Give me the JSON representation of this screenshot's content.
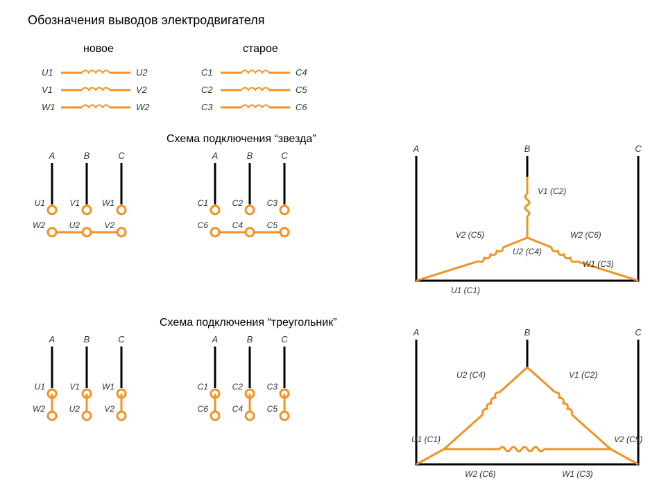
{
  "colors": {
    "orange": "#f59122",
    "black": "#000000",
    "white": "#ffffff",
    "text": "#333333"
  },
  "stroke": {
    "thick": 3,
    "thin": 2
  },
  "title": "Обозначения выводов электродвигателя",
  "headers": {
    "new": "новое",
    "old": "старое",
    "star": "Схема подключения “звезда”",
    "delta": "Схема подключения “треугольник”"
  },
  "windings": {
    "new": [
      {
        "l": "U1",
        "r": "U2"
      },
      {
        "l": "V1",
        "r": "V2"
      },
      {
        "l": "W1",
        "r": "W2"
      }
    ],
    "old": [
      {
        "l": "C1",
        "r": "C4"
      },
      {
        "l": "C2",
        "r": "C5"
      },
      {
        "l": "C3",
        "r": "C6"
      }
    ]
  },
  "terminals": {
    "phaseLabels": [
      "A",
      "B",
      "C"
    ],
    "new": {
      "top": [
        "U1",
        "V1",
        "W1"
      ],
      "bot": [
        "W2",
        "U2",
        "V2"
      ]
    },
    "old": {
      "top": [
        "C1",
        "C2",
        "C3"
      ],
      "bot": [
        "C6",
        "C4",
        "C5"
      ]
    }
  },
  "starCircuit": {
    "phases": [
      "A",
      "B",
      "C"
    ],
    "labels": {
      "top": "V1 (C2)",
      "centerLeft": "V2 (C5)",
      "centerRight": "W2 (C6)",
      "centerBottom": "U2 (C4)",
      "bottomLeft": "U1 (C1)",
      "bottomRight": "W1 (C3)"
    }
  },
  "deltaCircuit": {
    "phases": [
      "A",
      "B",
      "C"
    ],
    "labels": {
      "topLeft": "U2 (C4)",
      "topRight": "V1 (C2)",
      "midLeft": "U1 (C1)",
      "midRight": "V2 (C5)",
      "botLeft": "W2 (C6)",
      "botRight": "W1 (C3)"
    }
  }
}
